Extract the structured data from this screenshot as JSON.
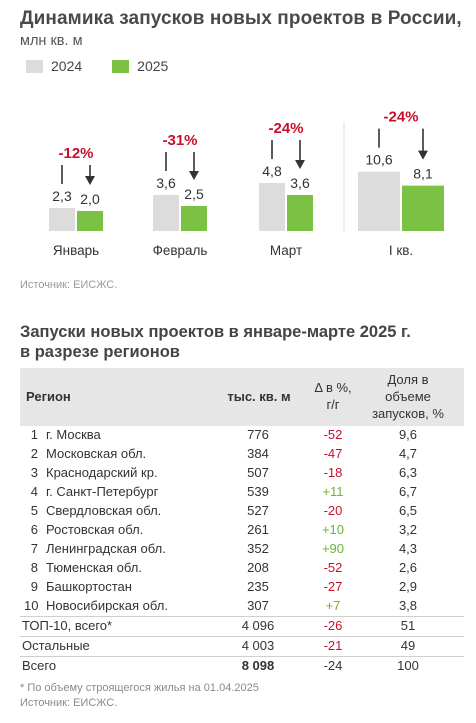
{
  "header": {
    "title": "Динамика запусков новых проектов в России,",
    "unit": "млн кв. м"
  },
  "legend": {
    "y2024": "2024",
    "y2025": "2025"
  },
  "colors": {
    "y2024": "#dcdcdc",
    "y2025": "#7bc144",
    "negative": "#c8102e",
    "positive": "#6ab532"
  },
  "chart_data": {
    "type": "bar",
    "categories": [
      "Январь",
      "Февраль",
      "Март",
      "I кв."
    ],
    "series": [
      {
        "name": "2024",
        "values": [
          2.3,
          3.6,
          4.8,
          10.6
        ],
        "labels": [
          "2,3",
          "3,6",
          "4,8",
          "10,6"
        ]
      },
      {
        "name": "2025",
        "values": [
          2.0,
          2.5,
          3.6,
          8.1
        ],
        "labels": [
          "2,0",
          "2,5",
          "3,6",
          "8,1"
        ]
      }
    ],
    "changes": [
      "-12%",
      "-31%",
      "-24%",
      "-24%"
    ],
    "panel_divider_before": "I кв."
  },
  "source1": "Источник: ЕИСЖС.",
  "table_title_line1": "Запуски новых проектов в январе-марте 2025 г.",
  "table_title_line2": "в разрезе регионов",
  "table": {
    "headers": {
      "region": "Регион",
      "area": "тыс. кв. м",
      "delta_line1": "Δ в %,",
      "delta_line2": "г/г",
      "share_line1": "Доля в",
      "share_line2": "объеме",
      "share_line3": "запусков, %"
    },
    "rows": [
      {
        "num": "1",
        "region": "г. Москва",
        "area": "776",
        "delta": "-52",
        "share": "9,6"
      },
      {
        "num": "2",
        "region": "Московская обл.",
        "area": "384",
        "delta": "-47",
        "share": "4,7"
      },
      {
        "num": "3",
        "region": "Краснодарский кр.",
        "area": "507",
        "delta": "-18",
        "share": "6,3"
      },
      {
        "num": "4",
        "region": "г. Санкт-Петербург",
        "area": "539",
        "delta": "+11",
        "share": "6,7"
      },
      {
        "num": "5",
        "region": "Свердловская обл.",
        "area": "527",
        "delta": "-20",
        "share": "6,5"
      },
      {
        "num": "6",
        "region": "Ростовская обл.",
        "area": "261",
        "delta": "+10",
        "share": "3,2"
      },
      {
        "num": "7",
        "region": "Ленинградская обл.",
        "area": "352",
        "delta": "+90",
        "share": "4,3"
      },
      {
        "num": "8",
        "region": "Тюменская обл.",
        "area": "208",
        "delta": "-52",
        "share": "2,6"
      },
      {
        "num": "9",
        "region": "Башкортостан",
        "area": "235",
        "delta": "-27",
        "share": "2,9"
      },
      {
        "num": "10",
        "region": "Новосибирская обл.",
        "area": "307",
        "delta": "+7",
        "share": "3,8"
      }
    ],
    "summary": [
      {
        "region": "ТОП-10, всего*",
        "area": "4 096",
        "delta": "-26",
        "share": "51"
      },
      {
        "region": "Остальные",
        "area": "4 003",
        "delta": "-21",
        "share": "49"
      },
      {
        "region": "Всего",
        "area": "8 098",
        "delta": "-24",
        "share": "100"
      }
    ]
  },
  "footnote": "* По объему строящегося жилья на 01.04.2025",
  "source2": "Источник: ЕИСЖС."
}
